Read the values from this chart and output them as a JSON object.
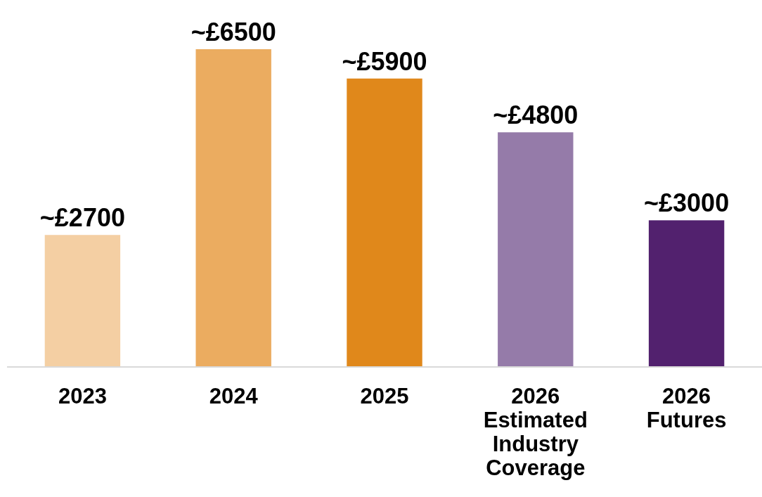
{
  "chart_data": {
    "type": "bar",
    "categories": [
      "2023",
      "2024",
      "2025",
      "2026 Estimated Industry Coverage",
      "2026 Futures"
    ],
    "values": [
      2700,
      6500,
      5900,
      4800,
      3000
    ],
    "colors": [
      "#f4cfa3",
      "#ebac60",
      "#e0881b",
      "#957ba9",
      "#52216e"
    ],
    "value_labels": [
      "~£2700",
      "~£6500",
      "~£5900",
      "~£4800",
      "~£3000"
    ]
  }
}
